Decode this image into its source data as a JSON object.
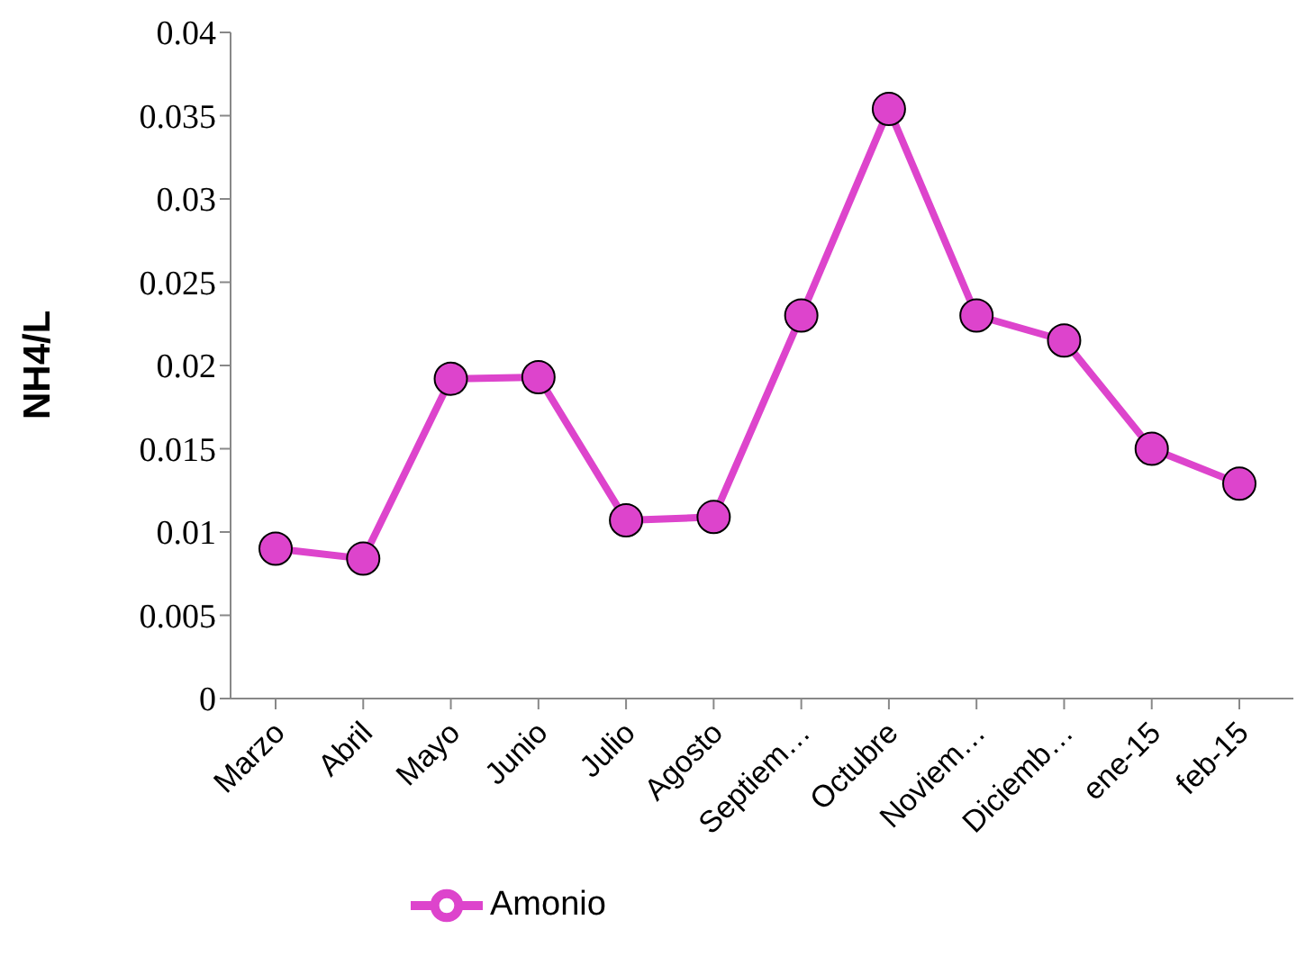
{
  "chart_data": {
    "type": "line",
    "ylabel": "NH4/L",
    "categories": [
      "Marzo",
      "Abril",
      "Mayo",
      "Junio",
      "Julio",
      "Agosto",
      "Septiem…",
      "Octubre",
      "Noviem…",
      "Diciemb…",
      "ene-15",
      "feb-15"
    ],
    "series": [
      {
        "name": "Amonio",
        "color": "#dd44cc",
        "values": [
          0.009,
          0.0084,
          0.0192,
          0.0193,
          0.0107,
          0.0109,
          0.023,
          0.0354,
          0.023,
          0.0215,
          0.015,
          0.0129
        ]
      }
    ],
    "ylim": [
      0,
      0.04
    ],
    "yticks": [
      0,
      0.005,
      0.01,
      0.015,
      0.02,
      0.025,
      0.03,
      0.035,
      0.04
    ],
    "grid": false,
    "legend": "bottom",
    "marker": "circle",
    "line_style": "solid"
  }
}
